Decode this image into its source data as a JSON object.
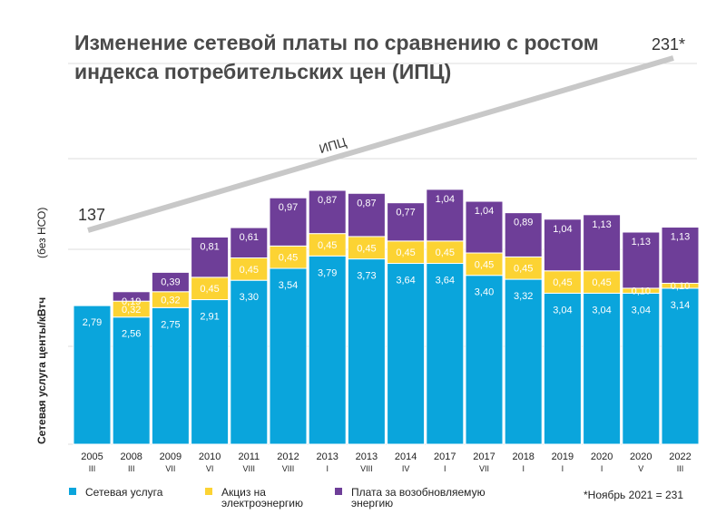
{
  "chart_data": {
    "type": "bar",
    "stacked": true,
    "title_lines": [
      "Изменение сетевой платы по сравнению с ростом",
      "индекса потребительских цен (ИПЦ)"
    ],
    "ylabel": "Сетевая услуга центы/кВтч",
    "ylabel_note": "(без НСО)",
    "categories": [
      "2005",
      "2008",
      "2009",
      "2010",
      "2011",
      "2012",
      "2013",
      "2013",
      "2014",
      "2017",
      "2017",
      "2018",
      "2019",
      "2020",
      "2020",
      "2022"
    ],
    "category_months": [
      "III",
      "III",
      "VII",
      "VI",
      "VIII",
      "VIII",
      "I",
      "VIII",
      "IV",
      "I",
      "VII",
      "I",
      "I",
      "I",
      "V",
      "III"
    ],
    "grid": true,
    "series": [
      {
        "name": "Сетевая услуга",
        "color": "#0aa5dc",
        "values": [
          2.79,
          2.56,
          2.75,
          2.91,
          3.3,
          3.54,
          3.79,
          3.73,
          3.64,
          3.64,
          3.4,
          3.32,
          3.04,
          3.04,
          3.04,
          3.14
        ],
        "labels": [
          "2,79",
          "2,56",
          "2,75",
          "2,91",
          "3,30",
          "3,54",
          "3,79",
          "3,73",
          "3,64",
          "3,64",
          "3,40",
          "3,32",
          "3,04",
          "3,04",
          "3,04",
          "3,14"
        ]
      },
      {
        "name": "Акциз на электроэнергию",
        "color": "#fcd333",
        "values": [
          0,
          0.32,
          0.32,
          0.45,
          0.45,
          0.45,
          0.45,
          0.45,
          0.45,
          0.45,
          0.45,
          0.45,
          0.45,
          0.45,
          0.1,
          0.1
        ],
        "labels": [
          "",
          "0,32",
          "0,32",
          "0,45",
          "0,45",
          "0,45",
          "0,45",
          "0,45",
          "0,45",
          "0,45",
          "0,45",
          "0,45",
          "0,45",
          "0,45",
          "0,10",
          "0,10"
        ]
      },
      {
        "name": "Плата за возобновляемую энергию",
        "color": "#6e3e98",
        "values": [
          0,
          0.19,
          0.39,
          0.81,
          0.61,
          0.97,
          0.87,
          0.87,
          0.77,
          1.04,
          1.04,
          0.89,
          1.04,
          1.13,
          1.13,
          1.13
        ],
        "labels": [
          "",
          "0,19",
          "0,39",
          "0,81",
          "0,61",
          "0,97",
          "0,87",
          "0,87",
          "0,77",
          "1,04",
          "1,04",
          "0,89",
          "1,04",
          "1,13",
          "1,13",
          "1,13"
        ]
      }
    ],
    "legend_lines": [
      [
        "Сетевая услуга"
      ],
      [
        "Акциз на",
        "электроэнергию"
      ],
      [
        "Плата за возобновляемую",
        "энергию"
      ]
    ],
    "cpi": {
      "label": "ИПЦ",
      "start_label": "137",
      "end_label": "231*",
      "start": 137,
      "end": 231
    },
    "footnote": "*Ноябрь 2021 = 231"
  }
}
